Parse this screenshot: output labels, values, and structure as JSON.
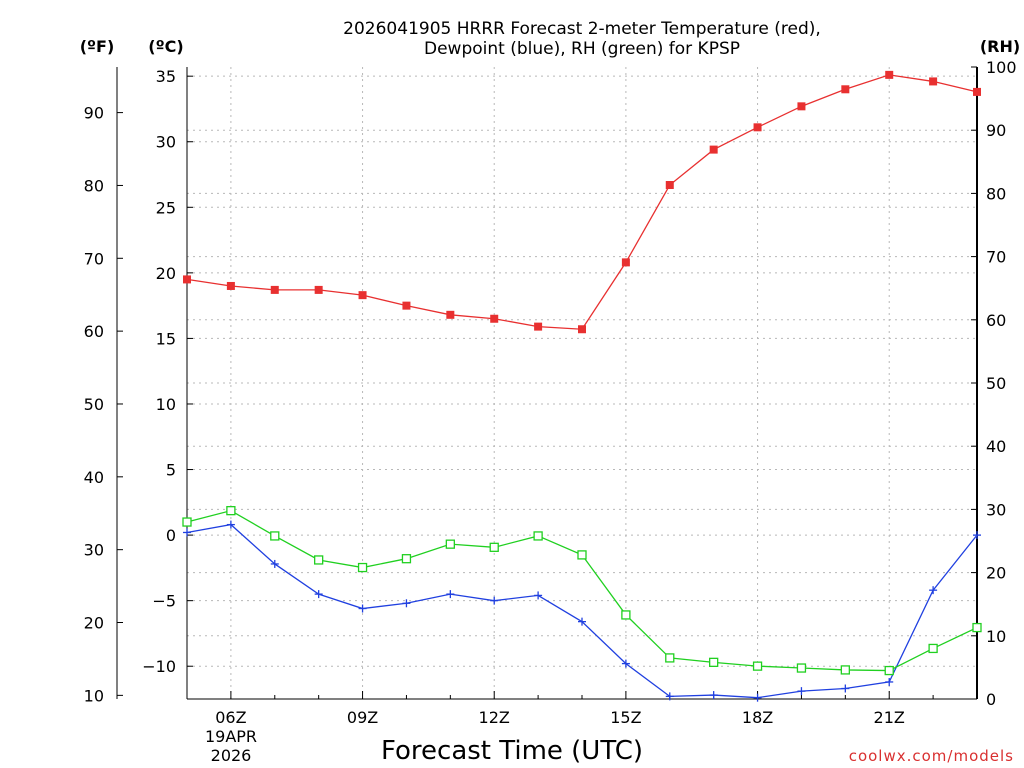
{
  "title": {
    "line1": "2026041905 HRRR Forecast 2-meter Temperature (red),",
    "line2": "Dewpoint (blue), RH (green) for KPSP"
  },
  "axis_units": {
    "fahrenheit": "(ºF)",
    "celsius": "(ºC)",
    "rh": "(RH)"
  },
  "x_axis_label": "Forecast Time (UTC)",
  "date_label": {
    "day": "19APR",
    "year": "2026"
  },
  "credit": "coolwx.com/models",
  "colors": {
    "temperature": "#e83030",
    "dewpoint": "#2040e0",
    "rh": "#20d020",
    "credit": "#d93030"
  },
  "chart_data": {
    "type": "line",
    "title": "2026041905 HRRR Forecast 2-meter Temperature (red), Dewpoint (blue), RH (green) for KPSP",
    "xlabel": "Forecast Time (UTC)",
    "x_hours_utc": [
      5,
      6,
      7,
      8,
      9,
      10,
      11,
      12,
      13,
      14,
      15,
      16,
      17,
      18,
      19,
      20,
      21,
      22,
      23
    ],
    "x_ticks": [
      {
        "hour": 6,
        "label": "06Z"
      },
      {
        "hour": 9,
        "label": "09Z"
      },
      {
        "hour": 12,
        "label": "12Z"
      },
      {
        "hour": 15,
        "label": "15Z"
      },
      {
        "hour": 18,
        "label": "18Z"
      },
      {
        "hour": 21,
        "label": "21Z"
      }
    ],
    "xlim": [
      5,
      23
    ],
    "celsius_axis": {
      "label": "(ºC)",
      "range": [
        -12.5,
        35.7
      ],
      "ticks": [
        35,
        30,
        25,
        20,
        15,
        10,
        5,
        0,
        -5,
        -10
      ],
      "tick_labels": [
        "35",
        "30",
        "25",
        "20",
        "15",
        "10",
        "5",
        "0",
        "−5",
        "−10"
      ]
    },
    "fahrenheit_axis": {
      "label": "(ºF)",
      "ticks": [
        90,
        80,
        70,
        60,
        50,
        40,
        30,
        20,
        10
      ],
      "tick_labels": [
        "90",
        "80",
        "70",
        "60",
        "50",
        "40",
        "30",
        "20",
        "10"
      ]
    },
    "rh_axis": {
      "label": "(RH)",
      "range": [
        0,
        100
      ],
      "ticks": [
        100,
        90,
        80,
        70,
        60,
        50,
        40,
        30,
        20,
        10,
        0
      ],
      "tick_labels": [
        "100",
        "90",
        "80",
        "70",
        "60",
        "50",
        "40",
        "30",
        "20",
        "10",
        "0"
      ]
    },
    "series": [
      {
        "name": "2-meter Temperature",
        "axis": "celsius",
        "marker": "filled-square",
        "values": [
          19.5,
          19.0,
          18.7,
          18.7,
          18.3,
          17.5,
          16.8,
          16.5,
          15.9,
          15.7,
          20.8,
          26.7,
          29.4,
          31.1,
          32.7,
          34.0,
          35.1,
          34.6,
          33.8
        ]
      },
      {
        "name": "Dewpoint",
        "axis": "celsius",
        "marker": "plus",
        "values": [
          0.2,
          0.8,
          -2.2,
          -4.5,
          -5.6,
          -5.2,
          -4.5,
          -5.0,
          -4.6,
          -6.6,
          -9.8,
          -12.3,
          -12.2,
          -12.4,
          -11.9,
          -11.7,
          -11.2,
          -4.2,
          0.0
        ]
      },
      {
        "name": "Relative Humidity",
        "axis": "rh",
        "marker": "open-square",
        "values": [
          28.0,
          29.8,
          25.8,
          22.0,
          20.8,
          22.2,
          24.5,
          24.0,
          25.8,
          22.8,
          13.3,
          6.5,
          5.8,
          5.2,
          4.9,
          4.6,
          4.5,
          8.0,
          11.3
        ]
      }
    ]
  }
}
